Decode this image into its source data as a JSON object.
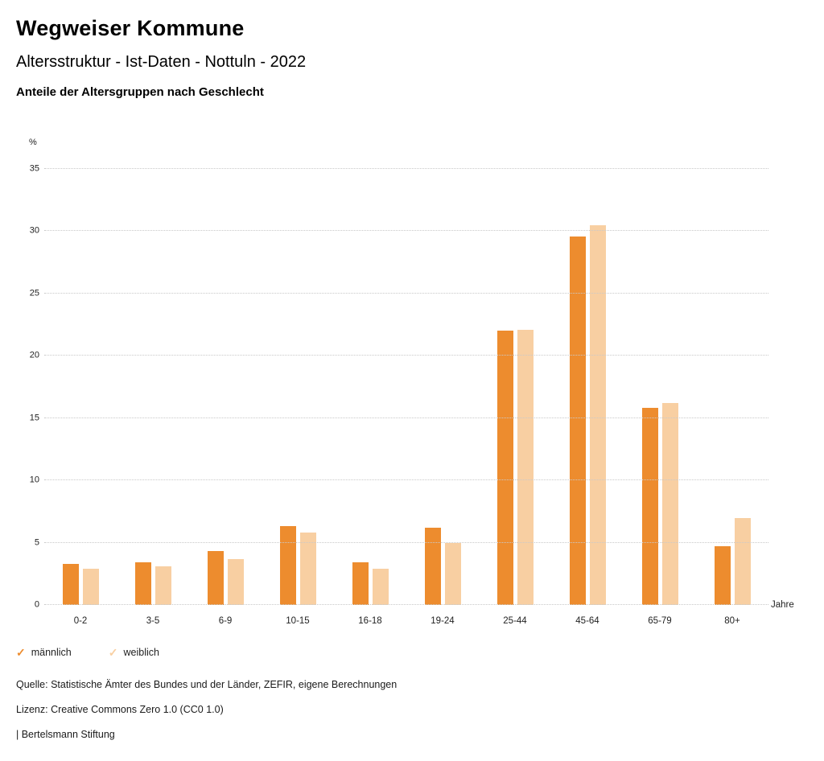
{
  "header": {
    "title": "Wegweiser Kommune",
    "subtitle": "Altersstruktur - Ist-Daten - Nottuln - 2022",
    "chart_heading": "Anteile der Altersgruppen nach Geschlecht"
  },
  "chart_data": {
    "type": "bar",
    "title": "Anteile der Altersgruppen nach Geschlecht",
    "ylabel": "%",
    "xlabel": "Jahre",
    "ylim": [
      0,
      35
    ],
    "yticks": [
      0,
      5,
      10,
      15,
      20,
      25,
      30,
      35
    ],
    "grid": true,
    "legend_position": "bottom",
    "categories": [
      "0-2",
      "3-5",
      "6-9",
      "10-15",
      "16-18",
      "19-24",
      "25-44",
      "45-64",
      "65-79",
      "80+"
    ],
    "series": [
      {
        "name": "männlich",
        "color": "#ED8C2E",
        "values": [
          3.3,
          3.4,
          4.3,
          6.3,
          3.4,
          6.2,
          22.0,
          29.6,
          15.8,
          4.7
        ]
      },
      {
        "name": "weiblich",
        "color": "#F8CFA2",
        "values": [
          2.9,
          3.1,
          3.7,
          5.8,
          2.9,
          5.0,
          22.1,
          30.5,
          16.2,
          7.0
        ]
      }
    ]
  },
  "legend": {
    "check_glyph": "✓",
    "items": [
      {
        "label": "männlich",
        "color": "#ED8C2E"
      },
      {
        "label": "weiblich",
        "color": "#F8CFA2"
      }
    ]
  },
  "footer": {
    "source": "Quelle: Statistische Ämter des Bundes und der Länder, ZEFIR, eigene Berechnungen",
    "license": "Lizenz: Creative Commons Zero 1.0 (CC0 1.0)",
    "attribution": "| Bertelsmann Stiftung"
  }
}
